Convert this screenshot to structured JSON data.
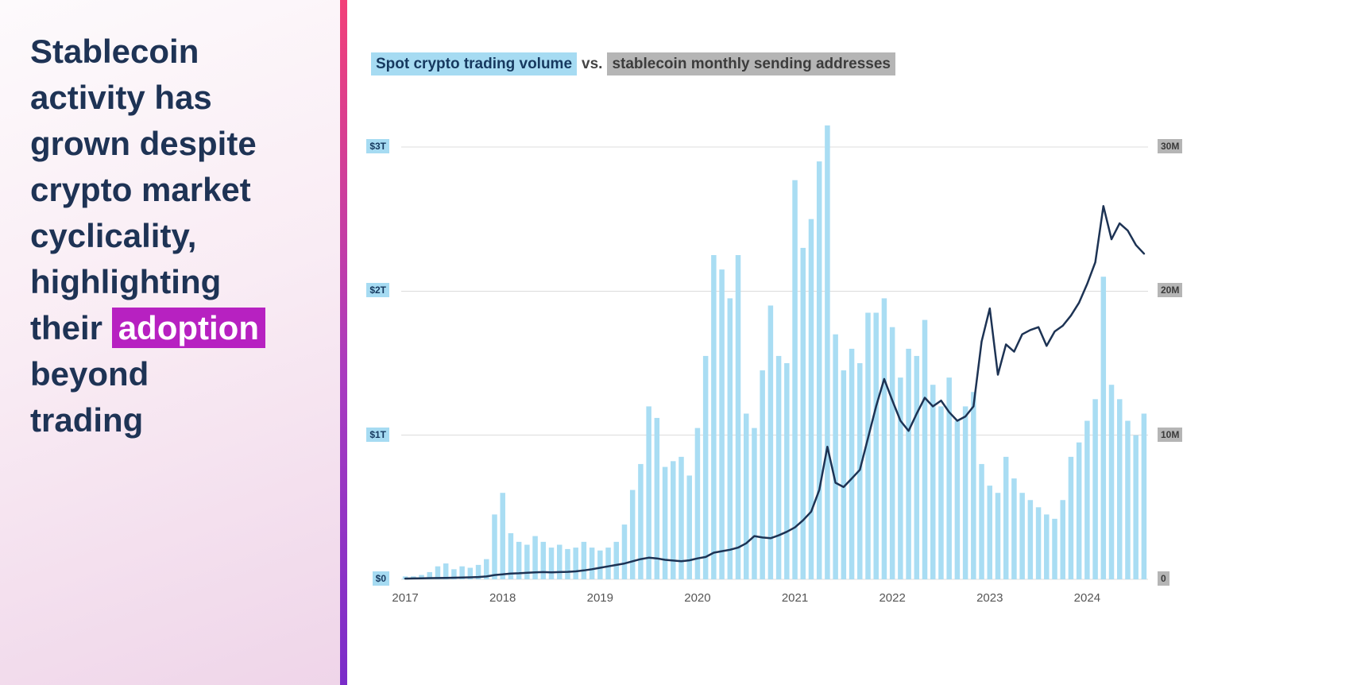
{
  "headline": {
    "text_before": "Stablecoin activity has grown despite crypto market cyclicality, highlighting their ",
    "highlight_word": "adoption",
    "text_after": " beyond trading"
  },
  "chart_title": {
    "series1": "Spot crypto trading volume",
    "separator": "vs.",
    "series2": "stablecoin monthly sending addresses"
  },
  "colors": {
    "headline_text": "#1e3355",
    "headline_highlight_bg": "#b721c1",
    "divider_top": "#f24078",
    "divider_bottom": "#7a2cc9",
    "series1_highlight_bg": "#a6dbf2",
    "series2_highlight_bg": "#b5b5b5",
    "bar": "#a9ddf3",
    "line": "#1d3354",
    "gridline": "#dcdcdc"
  },
  "chart_data": {
    "type": "bar",
    "title": "Spot crypto trading volume vs. stablecoin monthly sending addresses",
    "x_start": "2017-01",
    "x_end": "2024-08",
    "n_points": 92,
    "grid": "horizontal",
    "legend_position": "title-highlights",
    "x_tick_labels": [
      "2017",
      "2018",
      "2019",
      "2020",
      "2021",
      "2022",
      "2023",
      "2024"
    ],
    "left_axis": {
      "name": "Spot crypto trading volume",
      "unit": "trillion USD",
      "ticks": [
        {
          "label": "$0",
          "value": 0
        },
        {
          "label": "$1T",
          "value": 1
        },
        {
          "label": "$2T",
          "value": 2
        },
        {
          "label": "$3T",
          "value": 3
        }
      ]
    },
    "right_axis": {
      "name": "Stablecoin monthly sending addresses",
      "unit": "millions",
      "ticks": [
        {
          "label": "0",
          "value": 0
        },
        {
          "label": "10M",
          "value": 10
        },
        {
          "label": "20M",
          "value": 20
        },
        {
          "label": "30M",
          "value": 30
        }
      ]
    },
    "series": [
      {
        "name": "Spot crypto trading volume",
        "type": "bar",
        "axis": "left",
        "color": "#a9ddf3",
        "values": [
          0.02,
          0.02,
          0.03,
          0.05,
          0.09,
          0.11,
          0.07,
          0.09,
          0.08,
          0.1,
          0.14,
          0.45,
          0.6,
          0.32,
          0.26,
          0.24,
          0.3,
          0.26,
          0.22,
          0.24,
          0.21,
          0.22,
          0.26,
          0.22,
          0.2,
          0.22,
          0.26,
          0.38,
          0.62,
          0.8,
          1.2,
          1.12,
          0.78,
          0.82,
          0.85,
          0.72,
          1.05,
          1.55,
          2.25,
          2.15,
          1.95,
          2.25,
          1.15,
          1.05,
          1.45,
          1.9,
          1.55,
          1.5,
          2.77,
          2.3,
          2.5,
          2.9,
          3.15,
          1.7,
          1.45,
          1.6,
          1.5,
          1.85,
          1.85,
          1.95,
          1.75,
          1.4,
          1.6,
          1.55,
          1.8,
          1.35,
          1.2,
          1.4,
          1.1,
          1.2,
          1.3,
          0.8,
          0.65,
          0.6,
          0.85,
          0.7,
          0.6,
          0.55,
          0.5,
          0.45,
          0.42,
          0.55,
          0.85,
          0.95,
          1.1,
          1.25,
          2.1,
          1.35,
          1.25,
          1.1,
          1.0,
          1.15
        ]
      },
      {
        "name": "Stablecoin monthly sending addresses",
        "type": "line",
        "axis": "right",
        "color": "#1d3354",
        "values": [
          0.05,
          0.06,
          0.07,
          0.08,
          0.09,
          0.1,
          0.11,
          0.12,
          0.14,
          0.16,
          0.2,
          0.3,
          0.35,
          0.4,
          0.42,
          0.45,
          0.48,
          0.5,
          0.48,
          0.5,
          0.52,
          0.55,
          0.62,
          0.7,
          0.8,
          0.9,
          1.0,
          1.1,
          1.25,
          1.4,
          1.5,
          1.45,
          1.35,
          1.3,
          1.25,
          1.32,
          1.45,
          1.55,
          1.85,
          1.95,
          2.05,
          2.2,
          2.5,
          3.0,
          2.9,
          2.85,
          3.05,
          3.3,
          3.6,
          4.1,
          4.7,
          6.2,
          9.2,
          6.7,
          6.4,
          7.0,
          7.6,
          9.8,
          12.0,
          13.9,
          12.4,
          11.0,
          10.3,
          11.5,
          12.6,
          12.0,
          12.4,
          11.6,
          11.0,
          11.3,
          12.0,
          16.5,
          18.8,
          14.2,
          16.3,
          15.8,
          17.0,
          17.3,
          17.5,
          16.2,
          17.2,
          17.6,
          18.3,
          19.2,
          20.5,
          22.0,
          25.9,
          23.6,
          24.7,
          24.2,
          23.2,
          22.6
        ]
      }
    ]
  }
}
